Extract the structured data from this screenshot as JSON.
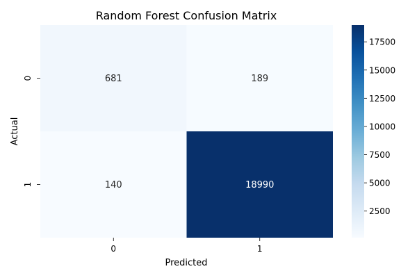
{
  "chart_data": {
    "type": "heatmap",
    "title": "Random Forest Confusion Matrix",
    "xlabel": "Predicted",
    "ylabel": "Actual",
    "x_categories": [
      "0",
      "1"
    ],
    "y_categories": [
      "0",
      "1"
    ],
    "values": [
      [
        681,
        189
      ],
      [
        140,
        18990
      ]
    ],
    "colormap": "Blues",
    "color_range": [
      140,
      18990
    ],
    "colorbar_ticks": [
      "2500",
      "5000",
      "7500",
      "10000",
      "12500",
      "15000",
      "17500"
    ],
    "colorbar_tick_values": [
      2500,
      5000,
      7500,
      10000,
      12500,
      15000,
      17500
    ]
  }
}
